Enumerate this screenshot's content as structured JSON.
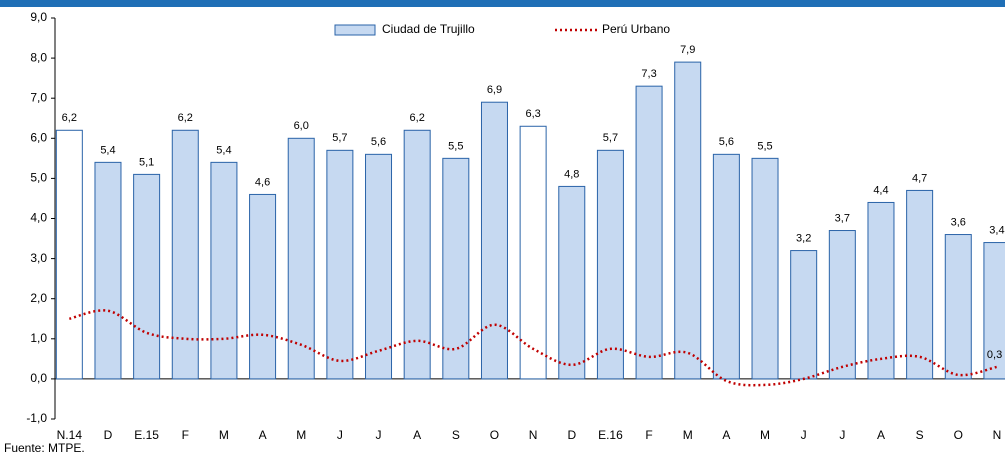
{
  "chart_data": {
    "type": "bar",
    "categories": [
      "N.14",
      "D",
      "E.15",
      "F",
      "M",
      "A",
      "M",
      "J",
      "J",
      "A",
      "S",
      "O",
      "N",
      "D",
      "E.16",
      "F",
      "M",
      "A",
      "M",
      "J",
      "J",
      "A",
      "S",
      "O",
      "N"
    ],
    "series": [
      {
        "name": "Ciudad de Trujillo",
        "color": "#c6d9f1",
        "stroke": "#2a63a8",
        "colors": [
          "#ffffff",
          "#c6d9f1",
          "#c6d9f1",
          "#c6d9f1",
          "#c6d9f1",
          "#c6d9f1",
          "#c6d9f1",
          "#c6d9f1",
          "#c6d9f1",
          "#c6d9f1",
          "#c6d9f1",
          "#c6d9f1",
          "#ffffff",
          "#c6d9f1",
          "#c6d9f1",
          "#c6d9f1",
          "#c6d9f1",
          "#c6d9f1",
          "#c6d9f1",
          "#c6d9f1",
          "#c6d9f1",
          "#c6d9f1",
          "#c6d9f1",
          "#c6d9f1",
          "#c6d9f1"
        ],
        "values": [
          6.2,
          5.4,
          5.1,
          6.2,
          5.4,
          4.6,
          6.0,
          5.7,
          5.6,
          6.2,
          5.5,
          6.9,
          6.3,
          4.8,
          5.7,
          7.3,
          7.9,
          5.6,
          5.5,
          3.2,
          3.7,
          4.4,
          4.7,
          3.6,
          3.4
        ],
        "value_labels": [
          "6,2",
          "5,4",
          "5,1",
          "6,2",
          "5,4",
          "4,6",
          "6,0",
          "5,7",
          "5,6",
          "6,2",
          "5,5",
          "6,9",
          "6,3",
          "4,8",
          "5,7",
          "7,3",
          "7,9",
          "5,6",
          "5,5",
          "3,2",
          "3,7",
          "4,4",
          "4,7",
          "3,6",
          "3,4"
        ]
      },
      {
        "name": "Perú Urbano",
        "type": "line",
        "color": "#c00000",
        "dashed": true,
        "values": [
          1.5,
          1.7,
          1.15,
          1.0,
          1.0,
          1.1,
          0.85,
          0.45,
          0.7,
          0.95,
          0.75,
          1.35,
          0.75,
          0.35,
          0.75,
          0.55,
          0.65,
          -0.05,
          -0.15,
          0.0,
          0.3,
          0.5,
          0.55,
          0.1,
          0.3
        ],
        "value_labels": [
          null,
          null,
          null,
          null,
          null,
          null,
          null,
          null,
          null,
          null,
          null,
          null,
          null,
          null,
          null,
          null,
          null,
          null,
          null,
          null,
          null,
          null,
          null,
          null,
          "0,3"
        ]
      }
    ],
    "ylim": [
      -1,
      9
    ],
    "yticks": [
      {
        "value": -1,
        "label": "-1,0"
      },
      {
        "value": 0,
        "label": "0,0"
      },
      {
        "value": 1,
        "label": "1,0"
      },
      {
        "value": 2,
        "label": "2,0"
      },
      {
        "value": 3,
        "label": "3,0"
      },
      {
        "value": 4,
        "label": "4,0"
      },
      {
        "value": 5,
        "label": "5,0"
      },
      {
        "value": 6,
        "label": "6,0"
      },
      {
        "value": 7,
        "label": "7,0"
      },
      {
        "value": 8,
        "label": "8,0"
      },
      {
        "value": 9,
        "label": "9,0"
      }
    ],
    "grid": false,
    "source": "Fuente: MTPE."
  }
}
